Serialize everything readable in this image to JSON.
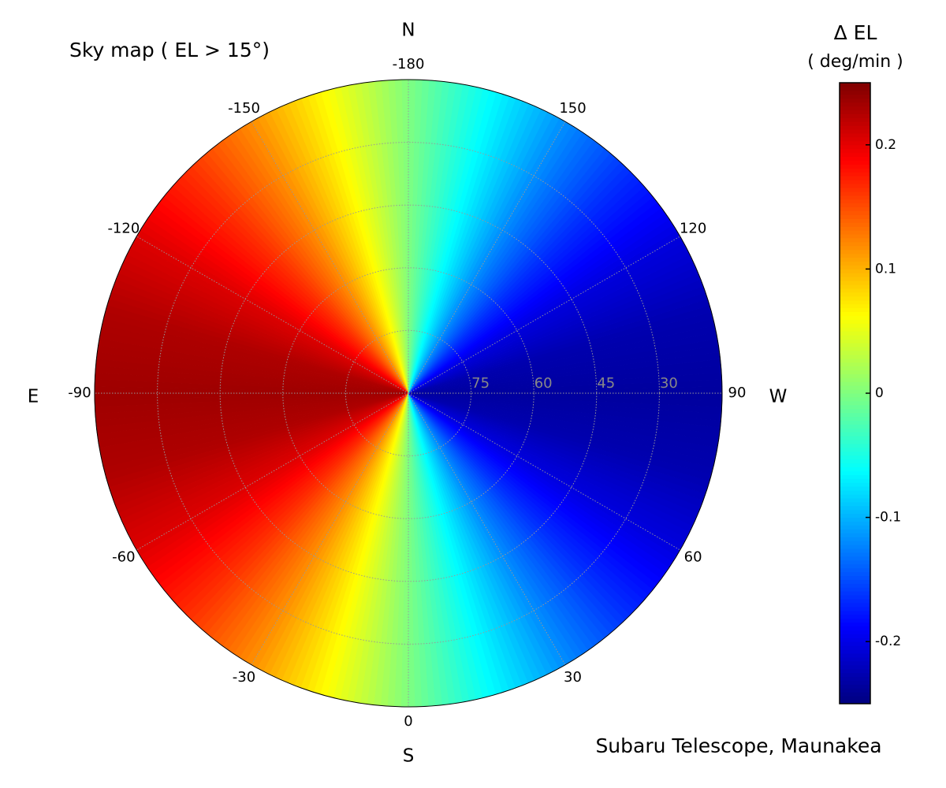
{
  "chart_data": {
    "type": "polar-map",
    "title": "Sky map  ( EL > 15°)",
    "colorbar_title": "Δ EL",
    "colorbar_unit": "( deg/min )",
    "footer": "Subaru Telescope, Maunakea",
    "compass": {
      "N": "N",
      "E": "E",
      "S": "S",
      "W": "W"
    },
    "colormap": "jet",
    "azimuths": [
      -180,
      -165,
      -150,
      -135,
      -120,
      -105,
      -90,
      -75,
      -60,
      -45,
      -30,
      -15,
      0,
      15,
      30,
      45,
      60,
      75,
      90,
      105,
      120,
      135,
      150,
      165,
      180
    ],
    "values": [
      0,
      0.061,
      0.118,
      0.166,
      0.204,
      0.227,
      0.235,
      0.227,
      0.204,
      0.166,
      0.118,
      0.061,
      0,
      -0.061,
      -0.118,
      -0.166,
      -0.204,
      -0.227,
      -0.235,
      -0.227,
      -0.204,
      -0.166,
      -0.118,
      -0.061,
      0
    ],
    "theta_ticks": [
      -180,
      -150,
      -120,
      -90,
      -60,
      -30,
      0,
      30,
      60,
      90,
      120,
      150
    ],
    "rlim": [
      90,
      15
    ],
    "rticks": [
      75,
      60,
      45,
      30
    ],
    "clim": [
      -0.25,
      0.25
    ],
    "cticks": [
      -0.2,
      -0.1,
      0,
      0.1,
      0.2
    ],
    "grid": true
  }
}
